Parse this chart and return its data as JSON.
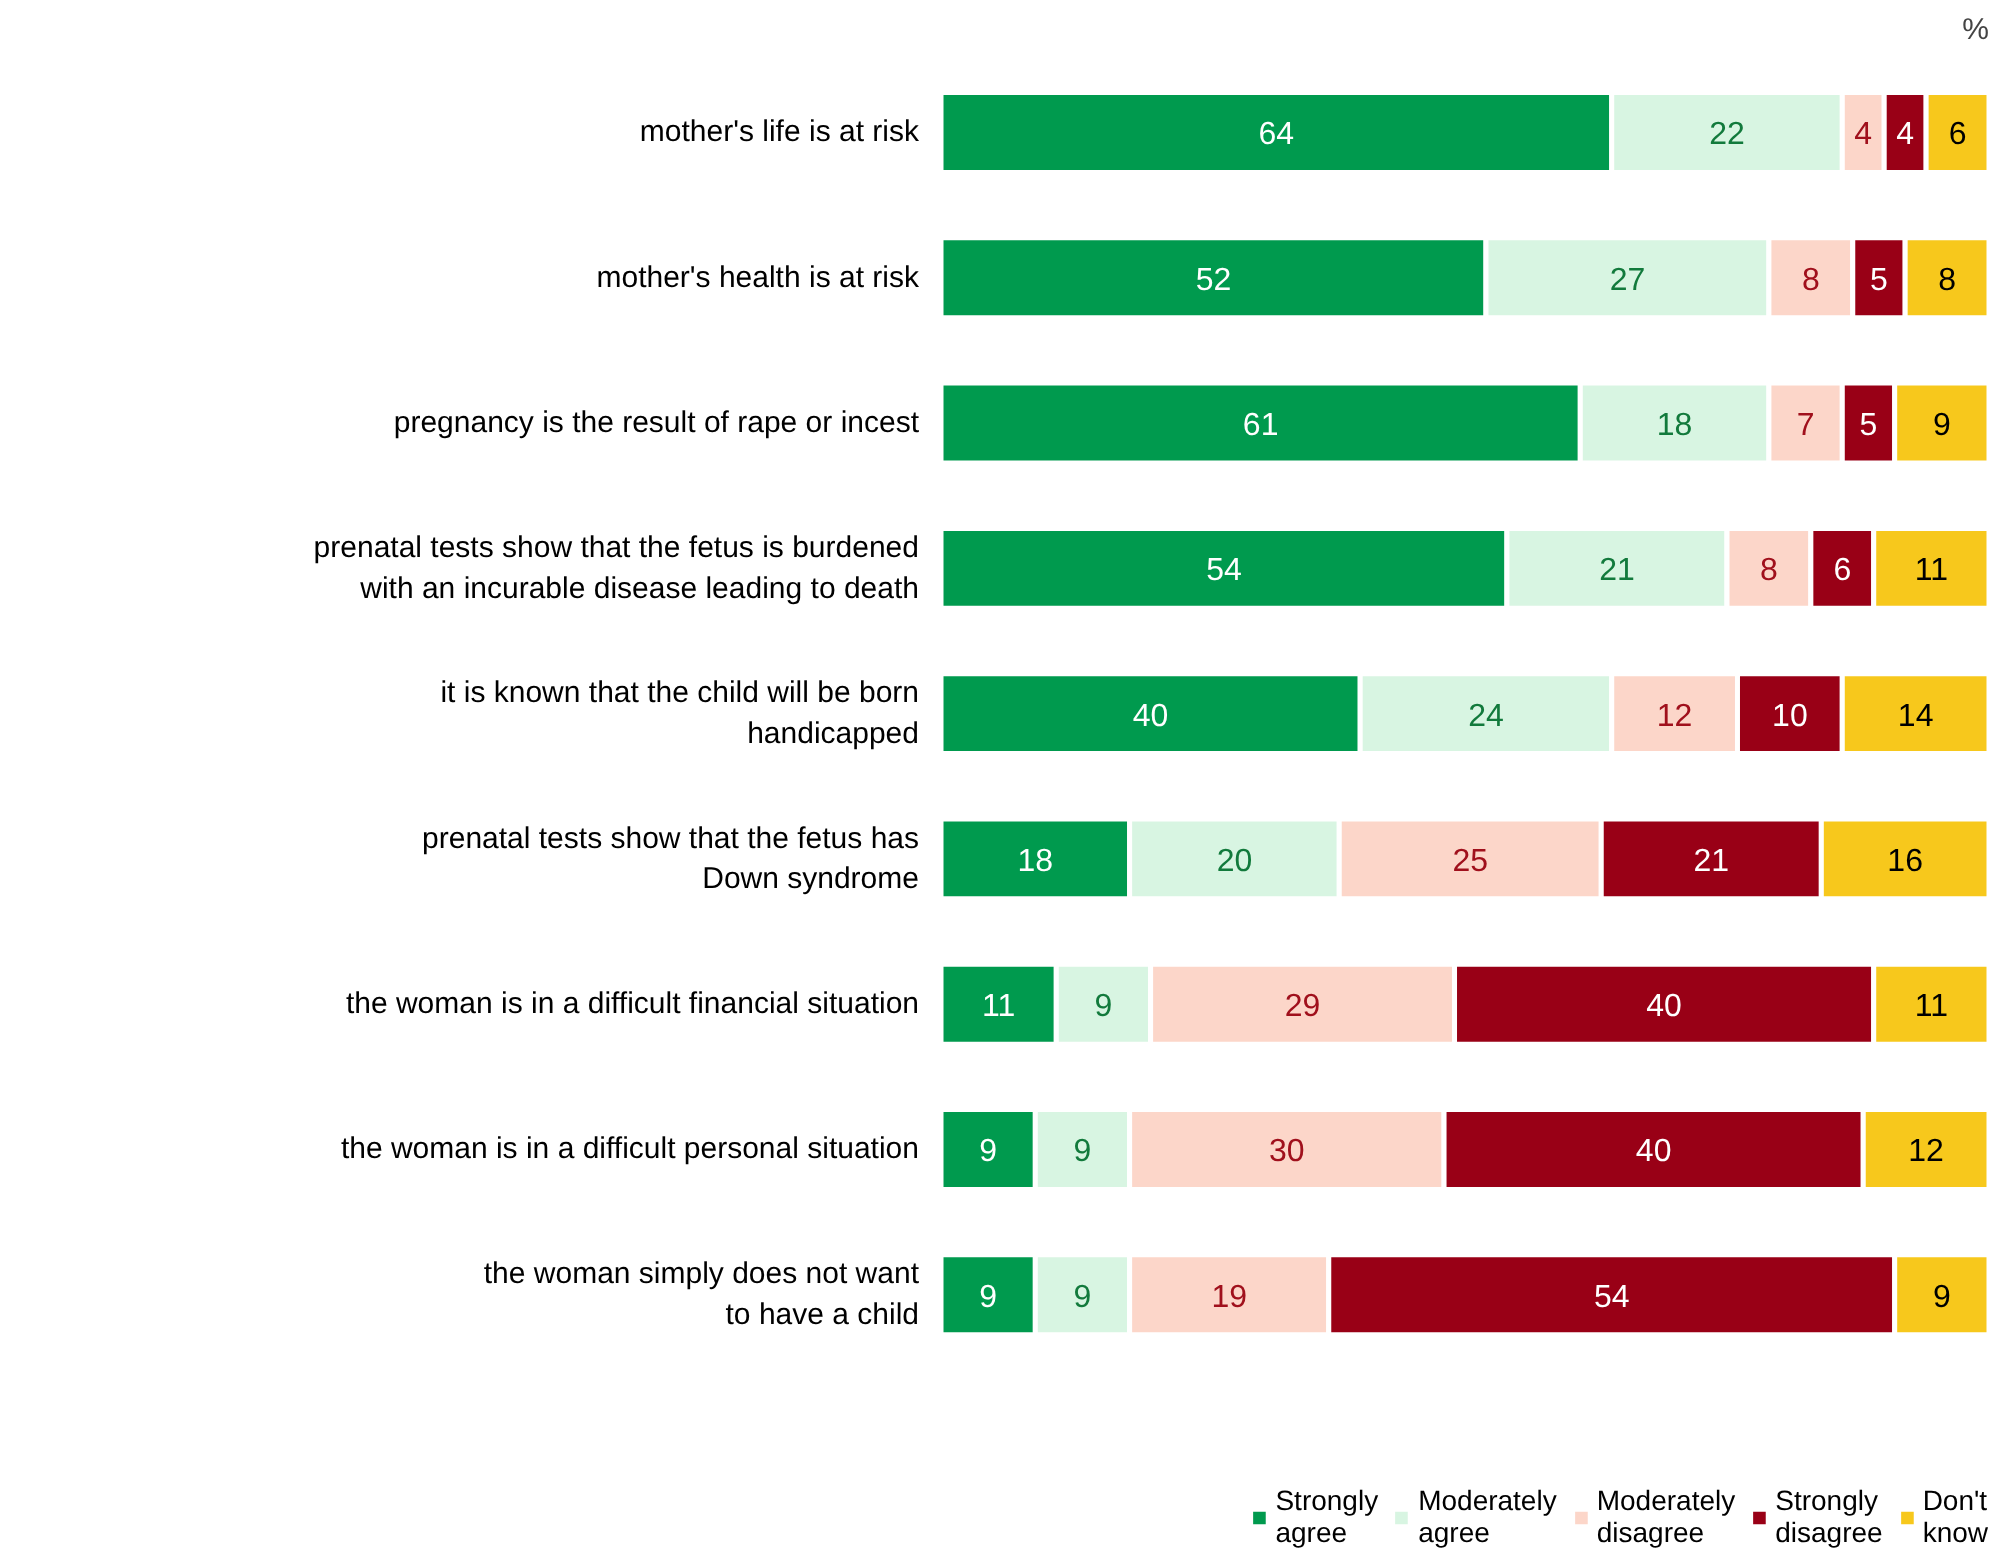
{
  "chart_data": {
    "type": "bar",
    "orientation": "horizontal",
    "stacked": true,
    "data_labels": true,
    "legend": "bottom",
    "grid": false,
    "tick_labels": "y",
    "categories": [
      "mother's life is at risk",
      "mother's health is at risk",
      "pregnancy is the result of rape or incest",
      "prenatal tests show that the fetus is burdened\nwith an incurable disease leading to death",
      "it is known that the child will be born\nhandicapped",
      "prenatal tests show that the fetus has\nDown syndrome",
      "the woman is in a difficult financial situation",
      "the woman is in a difficult personal situation",
      "the woman simply does not want\nto have a child"
    ],
    "series": [
      {
        "name": "Strongly\nagree",
        "color": "#009a4e",
        "values": [
          64,
          52,
          61,
          54,
          40,
          18,
          11,
          9,
          9
        ]
      },
      {
        "name": "Moderately\nagree",
        "color": "#d8f5e2",
        "values": [
          22,
          27,
          18,
          21,
          24,
          20,
          9,
          9,
          9
        ]
      },
      {
        "name": "Moderately\ndisagree",
        "color": "#fcd6c9",
        "values": [
          4,
          8,
          7,
          8,
          12,
          25,
          29,
          30,
          19
        ]
      },
      {
        "name": "Strongly\ndisagree",
        "color": "#990016",
        "values": [
          4,
          5,
          5,
          6,
          10,
          21,
          40,
          40,
          54
        ]
      },
      {
        "name": "Don't\nknow",
        "color": "#f7c81c",
        "values": [
          6,
          8,
          9,
          11,
          14,
          16,
          11,
          12,
          9
        ]
      }
    ],
    "annotations": [
      "%"
    ]
  }
}
